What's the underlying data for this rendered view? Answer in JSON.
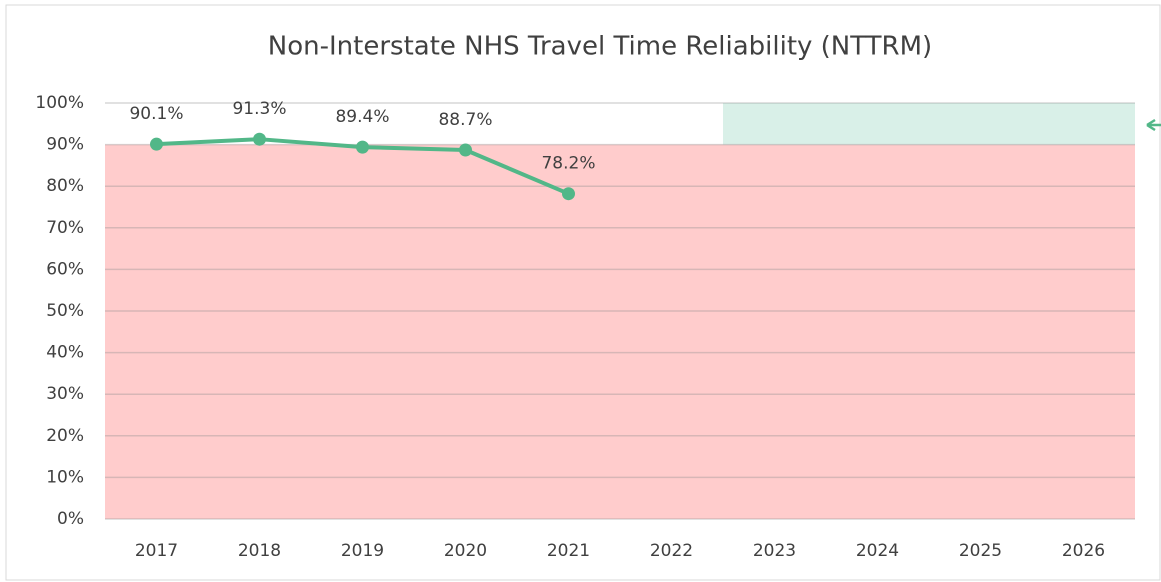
{
  "chart_data": {
    "type": "line",
    "title": "Non-Interstate NHS Travel Time Reliability (NTTRM)",
    "categories": [
      "2017",
      "2018",
      "2019",
      "2020",
      "2021",
      "2022",
      "2023",
      "2024",
      "2025",
      "2026"
    ],
    "series": [
      {
        "name": "NTTRM",
        "color": "#52b788",
        "values": [
          90.1,
          91.3,
          89.4,
          88.7,
          78.2,
          null,
          null,
          null,
          null,
          null
        ],
        "value_labels": [
          "90.1%",
          "91.3%",
          "89.4%",
          "88.7%",
          "78.2%",
          null,
          null,
          null,
          null,
          null
        ]
      }
    ],
    "ylim": [
      0,
      100
    ],
    "yticks": [
      {
        "value": 0,
        "label": "0%"
      },
      {
        "value": 10,
        "label": "10%"
      },
      {
        "value": 20,
        "label": "20%"
      },
      {
        "value": 30,
        "label": "30%"
      },
      {
        "value": 40,
        "label": "40%"
      },
      {
        "value": 50,
        "label": "50%"
      },
      {
        "value": 60,
        "label": "60%"
      },
      {
        "value": 70,
        "label": "70%"
      },
      {
        "value": 80,
        "label": "80%"
      },
      {
        "value": 90,
        "label": "90%"
      },
      {
        "value": 100,
        "label": "100%"
      }
    ],
    "grid": true,
    "bands": [
      {
        "ylim": [
          0,
          90
        ],
        "color": "#ffcccc"
      },
      {
        "ylim": [
          90,
          100
        ],
        "color": "#d9f0e8",
        "from": "2023"
      }
    ]
  }
}
